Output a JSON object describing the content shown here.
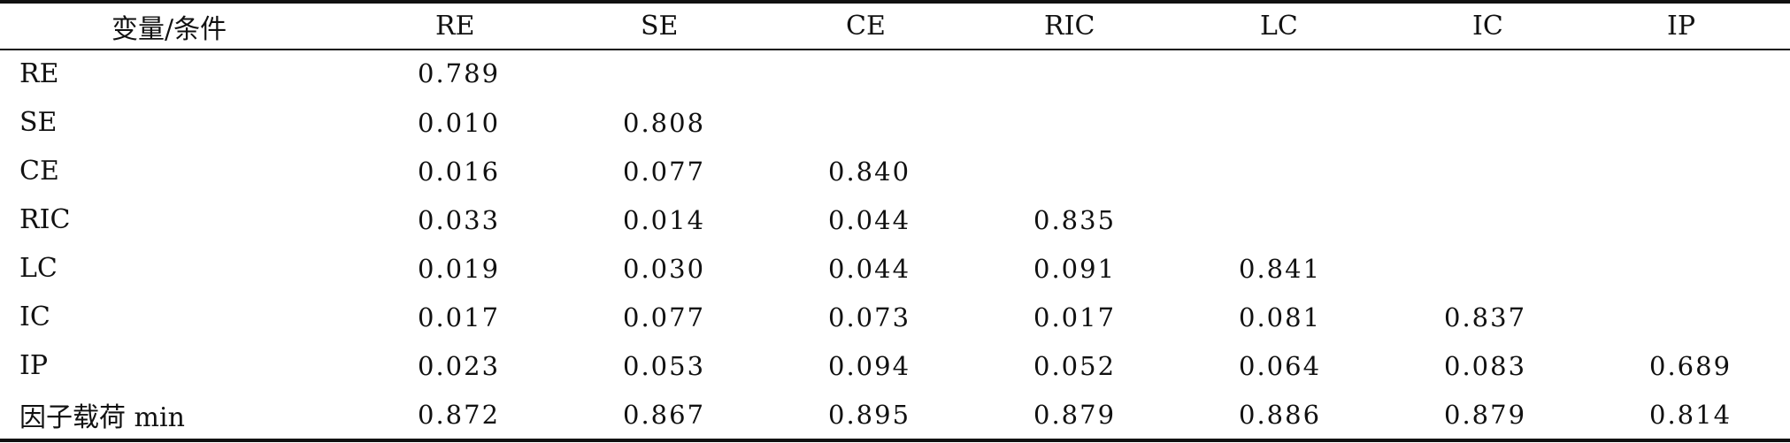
{
  "table": {
    "headers": [
      "变量/条件",
      "RE",
      "SE",
      "CE",
      "RIC",
      "LC",
      "IC",
      "IP"
    ],
    "rows": [
      {
        "label": "RE",
        "values": [
          "0.789",
          "",
          "",
          "",
          "",
          "",
          ""
        ]
      },
      {
        "label": "SE",
        "values": [
          "0.010",
          "0.808",
          "",
          "",
          "",
          "",
          ""
        ]
      },
      {
        "label": "CE",
        "values": [
          "0.016",
          "0.077",
          "0.840",
          "",
          "",
          "",
          ""
        ]
      },
      {
        "label": "RIC",
        "values": [
          "0.033",
          "0.014",
          "0.044",
          "0.835",
          "",
          "",
          ""
        ]
      },
      {
        "label": "LC",
        "values": [
          "0.019",
          "0.030",
          "0.044",
          "0.091",
          "0.841",
          "",
          ""
        ]
      },
      {
        "label": "IC",
        "values": [
          "0.017",
          "0.077",
          "0.073",
          "0.017",
          "0.081",
          "0.837",
          ""
        ]
      },
      {
        "label": "IP",
        "values": [
          "0.023",
          "0.053",
          "0.094",
          "0.052",
          "0.064",
          "0.083",
          "0.689"
        ]
      },
      {
        "label": "因子载荷 min",
        "values": [
          "0.872",
          "0.867",
          "0.895",
          "0.879",
          "0.886",
          "0.879",
          "0.814"
        ]
      }
    ]
  }
}
